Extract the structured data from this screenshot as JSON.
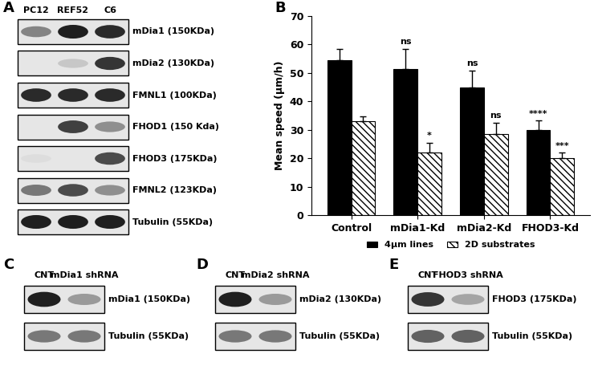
{
  "chart_data": {
    "type": "bar",
    "panel_label": "B",
    "y_label": "Mean speed (µm/h)",
    "categories": [
      "Control",
      "mDia1-Kd",
      "mDia2-Kd",
      "FHOD3-Kd"
    ],
    "ylim": [
      0,
      70
    ],
    "yticks": [
      0,
      10,
      20,
      30,
      40,
      50,
      60,
      70
    ],
    "legend": "bottom",
    "series": [
      {
        "name": "4µm lines",
        "color": "#000000",
        "values": [
          54.5,
          51.5,
          45,
          30
        ],
        "errors": [
          3.8,
          7,
          5.8,
          3.2
        ],
        "annotations": [
          null,
          "ns",
          "ns",
          "****"
        ]
      },
      {
        "name": "2D substrates",
        "color": "#ffffff",
        "values": [
          33,
          22,
          28.5,
          20
        ],
        "errors": [
          1.8,
          3.5,
          4,
          2
        ],
        "annotations": [
          null,
          "*",
          "ns",
          "***"
        ]
      }
    ]
  },
  "blots": [
    {
      "panel_label": "A",
      "lanes": [
        "PC12",
        "REF52",
        "C6"
      ],
      "rows": [
        {
          "label": "mDia1 (150KDa)",
          "band_intensity": [
            0.55,
            1,
            0.95
          ]
        },
        {
          "label": "mDia2 (130KDa)",
          "band_intensity": [
            0,
            0.25,
            0.9
          ]
        },
        {
          "label": "FMNL1 (100KDa)",
          "band_intensity": [
            0.95,
            0.95,
            0.95
          ]
        },
        {
          "label": "FHOD1 (150 Kda)",
          "band_intensity": [
            0,
            0.85,
            0.5
          ]
        },
        {
          "label": "FHOD3 (175KDa)",
          "band_intensity": [
            0.15,
            0,
            0.8
          ]
        },
        {
          "label": "FMNL2 (123KDa)",
          "band_intensity": [
            0.6,
            0.8,
            0.5
          ]
        },
        {
          "label": "Tubulin (55KDa)",
          "band_intensity": [
            1,
            1,
            1
          ]
        }
      ]
    },
    {
      "panel_label": "C",
      "lanes": [
        "CNT",
        "mDia1 shRNA"
      ],
      "rows": [
        {
          "label": "mDia1 (150KDa)",
          "band_intensity": [
            1,
            0.45
          ]
        },
        {
          "label": "Tubulin (55KDa)",
          "band_intensity": [
            0.6,
            0.6
          ]
        }
      ]
    },
    {
      "panel_label": "D",
      "lanes": [
        "CNT",
        "mDia2 shRNA"
      ],
      "rows": [
        {
          "label": "mDia2 (130KDa)",
          "band_intensity": [
            1,
            0.45
          ]
        },
        {
          "label": "Tubulin (55KDa)",
          "band_intensity": [
            0.6,
            0.6
          ]
        }
      ]
    },
    {
      "panel_label": "E",
      "lanes": [
        "CNT",
        "FHOD3 shRNA"
      ],
      "rows": [
        {
          "label": "FHOD3 (175KDa)",
          "band_intensity": [
            0.9,
            0.4
          ]
        },
        {
          "label": "Tubulin (55KDa)",
          "band_intensity": [
            0.7,
            0.7
          ]
        }
      ]
    }
  ]
}
